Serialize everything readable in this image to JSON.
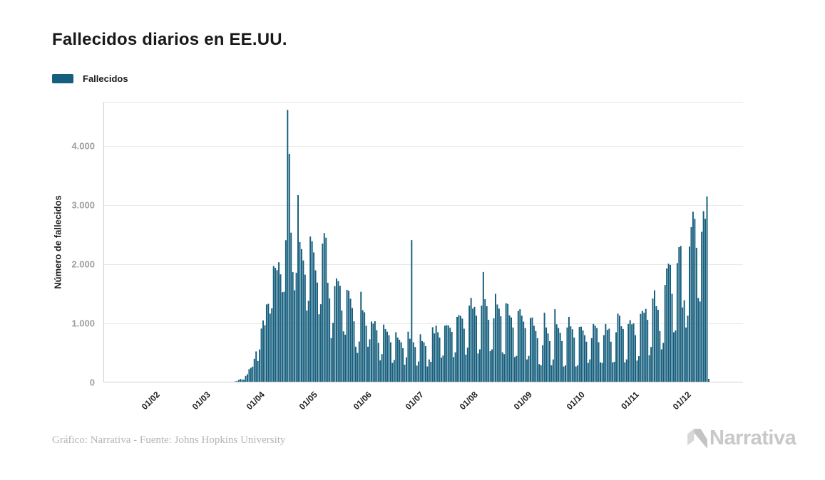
{
  "page": {
    "title": "Fallecidos diarios en EE.UU."
  },
  "legend": {
    "label": "Fallecidos"
  },
  "footer": {
    "credit": "Gráfico: Narrativa - Fuente: Johns Hopkins University",
    "logo_text": "Narrativa"
  },
  "colors": {
    "bar": "#155E7D",
    "grid": "#e9e9e9",
    "axis_line": "#cfcfcf",
    "y_tick_text": "#9e9e9e",
    "x_tick_text": "#1f1f1f",
    "title_text": "#191919",
    "credit_text": "#b5b5b5",
    "logo_gray": "#c8c8c8"
  },
  "chart_data": {
    "type": "bar",
    "title": "Fallecidos diarios en EE.UU.",
    "xlabel": "",
    "ylabel": "Número de fallecidos",
    "legend_entries": [
      "Fallecidos"
    ],
    "legend_position": "top-left",
    "grid": true,
    "ylim": [
      0,
      4750
    ],
    "yticks": [
      0,
      1000,
      2000,
      3000,
      4000
    ],
    "ytick_labels": [
      "0",
      "1.000",
      "2.000",
      "3.000",
      "4.000"
    ],
    "x_axis_range_days": 366,
    "x_axis_range": [
      "2020-01-01",
      "2020-12-31"
    ],
    "xtick_labels": [
      "01/02",
      "01/03",
      "01/04",
      "01/05",
      "01/06",
      "01/07",
      "01/08",
      "01/09",
      "01/10",
      "01/11",
      "01/12"
    ],
    "xtick_day_of_year": [
      31,
      60,
      91,
      121,
      152,
      182,
      213,
      244,
      274,
      305,
      335
    ],
    "series": [
      {
        "name": "Fallecidos",
        "start_date": "2020-01-22",
        "start_day_of_year": 21,
        "values": [
          0,
          0,
          0,
          0,
          0,
          0,
          0,
          0,
          0,
          0,
          0,
          0,
          0,
          0,
          0,
          1,
          0,
          0,
          0,
          0,
          0,
          0,
          0,
          0,
          0,
          0,
          0,
          0,
          0,
          0,
          0,
          0,
          0,
          0,
          0,
          0,
          0,
          1,
          1,
          1,
          4,
          3,
          4,
          2,
          3,
          4,
          3,
          4,
          4,
          7,
          3,
          8,
          11,
          11,
          18,
          23,
          41,
          57,
          49,
          46,
          111,
          140,
          225,
          247,
          268,
          400,
          525,
          363,
          558,
          912,
          1049,
          968,
          1321,
          1331,
          1165,
          1255,
          1970,
          1940,
          1900,
          2035,
          1830,
          1528,
          1535,
          2408,
          4614,
          3870,
          2535,
          1867,
          1561,
          1857,
          3170,
          2376,
          2258,
          2065,
          1825,
          1218,
          1384,
          2470,
          2390,
          2201,
          1898,
          1691,
          1154,
          1324,
          2350,
          2528,
          2450,
          1687,
          1422,
          750,
          1008,
          1630,
          1760,
          1715,
          1635,
          1218,
          865,
          808,
          1568,
          1552,
          1418,
          1260,
          1035,
          605,
          500,
          693,
          1535,
          1223,
          1187,
          960,
          605,
          730,
          1031,
          995,
          1036,
          885,
          670,
          373,
          480,
          980,
          905,
          860,
          800,
          680,
          330,
          380,
          850,
          760,
          722,
          680,
          580,
          300,
          425,
          860,
          740,
          2410,
          680,
          600,
          285,
          355,
          815,
          700,
          680,
          615,
          270,
          390,
          350,
          935,
          830,
          960,
          850,
          760,
          420,
          455,
          960,
          970,
          965,
          925,
          855,
          430,
          510,
          1110,
          1140,
          1125,
          1080,
          910,
          470,
          590,
          1300,
          1430,
          1250,
          1280,
          1130,
          490,
          560,
          1300,
          1870,
          1410,
          1290,
          1060,
          530,
          560,
          1085,
          1500,
          1320,
          1250,
          1120,
          510,
          480,
          1340,
          1330,
          1135,
          1100,
          930,
          430,
          450,
          1210,
          1240,
          1130,
          1030,
          920,
          390,
          450,
          1090,
          1100,
          960,
          870,
          750,
          310,
          290,
          630,
          1180,
          930,
          830,
          700,
          290,
          390,
          1240,
          985,
          920,
          840,
          700,
          270,
          290,
          930,
          1110,
          950,
          900,
          760,
          270,
          290,
          940,
          945,
          880,
          800,
          690,
          330,
          390,
          750,
          990,
          960,
          920,
          680,
          340,
          330,
          800,
          990,
          890,
          910,
          690,
          340,
          350,
          850,
          1165,
          1130,
          950,
          905,
          340,
          390,
          990,
          1055,
          985,
          1000,
          800,
          370,
          445,
          1160,
          1210,
          1180,
          1245,
          1060,
          460,
          600,
          1420,
          1560,
          1290,
          1230,
          870,
          560,
          670,
          1650,
          1930,
          2010,
          1990,
          1500,
          850,
          880,
          2020,
          2290,
          2310,
          1270,
          1390,
          930,
          1130,
          2300,
          2630,
          2890,
          2770,
          2280,
          1430,
          1370,
          2550,
          2900,
          2770,
          3150,
          60
        ]
      }
    ]
  }
}
